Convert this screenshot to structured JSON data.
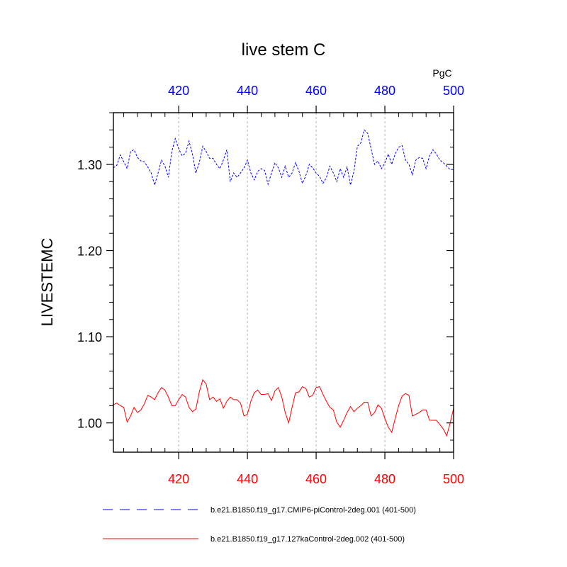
{
  "chart_data": {
    "type": "line",
    "title": "live stem C",
    "ylabel": "LIVESTEMC",
    "units": "PgC",
    "xlim": [
      401,
      500
    ],
    "ylim": [
      0.966,
      1.36
    ],
    "yticks": [
      1.0,
      1.1,
      1.2,
      1.3
    ],
    "ytick_labels": [
      "1.00",
      "1.10",
      "1.20",
      "1.30"
    ],
    "yminor_step": 0.02,
    "xticks": [
      420,
      440,
      460,
      480,
      500
    ],
    "xtick_labels_bottom": [
      "420",
      "440",
      "460",
      "480",
      "500"
    ],
    "xtick_labels_top": [
      "420",
      "440",
      "460",
      "480",
      "500"
    ],
    "xminor_step": 4,
    "bottom_axis_color": "#ff0000",
    "top_axis_color": "#0000ff",
    "grid": "vertical dashed at major x ticks",
    "x_start": 401,
    "x_step": 1,
    "series": [
      {
        "name": "b.e21.B1850.f19_g17.CMIP6-piControl-2deg.001 (401-500)",
        "color": "#0000ff",
        "style": "dashed",
        "values": [
          1.296,
          1.299,
          1.311,
          1.303,
          1.295,
          1.315,
          1.317,
          1.308,
          1.304,
          1.303,
          1.297,
          1.29,
          1.276,
          1.29,
          1.305,
          1.298,
          1.285,
          1.315,
          1.33,
          1.318,
          1.31,
          1.313,
          1.327,
          1.312,
          1.29,
          1.302,
          1.321,
          1.315,
          1.307,
          1.307,
          1.3,
          1.295,
          1.305,
          1.317,
          1.28,
          1.29,
          1.285,
          1.29,
          1.296,
          1.305,
          1.29,
          1.282,
          1.292,
          1.295,
          1.293,
          1.277,
          1.29,
          1.302,
          1.296,
          1.285,
          1.298,
          1.285,
          1.29,
          1.302,
          1.292,
          1.278,
          1.287,
          1.3,
          1.296,
          1.29,
          1.286,
          1.278,
          1.285,
          1.298,
          1.29,
          1.28,
          1.295,
          1.285,
          1.297,
          1.276,
          1.292,
          1.321,
          1.325,
          1.34,
          1.336,
          1.318,
          1.3,
          1.304,
          1.295,
          1.302,
          1.312,
          1.3,
          1.312,
          1.32,
          1.322,
          1.305,
          1.3,
          1.288,
          1.305,
          1.308,
          1.307,
          1.295,
          1.31,
          1.317,
          1.312,
          1.305,
          1.302,
          1.298,
          1.294,
          1.294
        ]
      },
      {
        "name": "b.e21.B1850.f19_g17.127kaControl-2deg.002 (401-500)",
        "color": "#ff0000",
        "style": "solid",
        "values": [
          1.021,
          1.023,
          1.02,
          1.018,
          1.001,
          1.008,
          1.018,
          1.012,
          1.015,
          1.022,
          1.032,
          1.03,
          1.027,
          1.035,
          1.041,
          1.038,
          1.03,
          1.02,
          1.02,
          1.027,
          1.033,
          1.03,
          1.018,
          1.013,
          1.016,
          1.036,
          1.05,
          1.045,
          1.027,
          1.03,
          1.025,
          1.028,
          1.017,
          1.025,
          1.03,
          1.027,
          1.027,
          1.023,
          1.008,
          1.01,
          1.025,
          1.035,
          1.038,
          1.033,
          1.033,
          1.034,
          1.026,
          1.037,
          1.041,
          1.03,
          1.012,
          1.0,
          1.018,
          1.035,
          1.036,
          1.042,
          1.04,
          1.03,
          1.032,
          1.041,
          1.042,
          1.033,
          1.025,
          1.018,
          1.015,
          1.001,
          0.995,
          1.003,
          1.012,
          1.019,
          1.013,
          1.017,
          1.02,
          1.024,
          1.024,
          1.008,
          1.012,
          1.021,
          1.017,
          1.005,
          0.995,
          0.989,
          1.005,
          1.02,
          1.031,
          1.034,
          1.032,
          1.008,
          1.01,
          1.012,
          1.015,
          1.015,
          1.003,
          1.003,
          1.003,
          0.998,
          0.993,
          0.985,
          1.0,
          1.017
        ]
      }
    ]
  }
}
